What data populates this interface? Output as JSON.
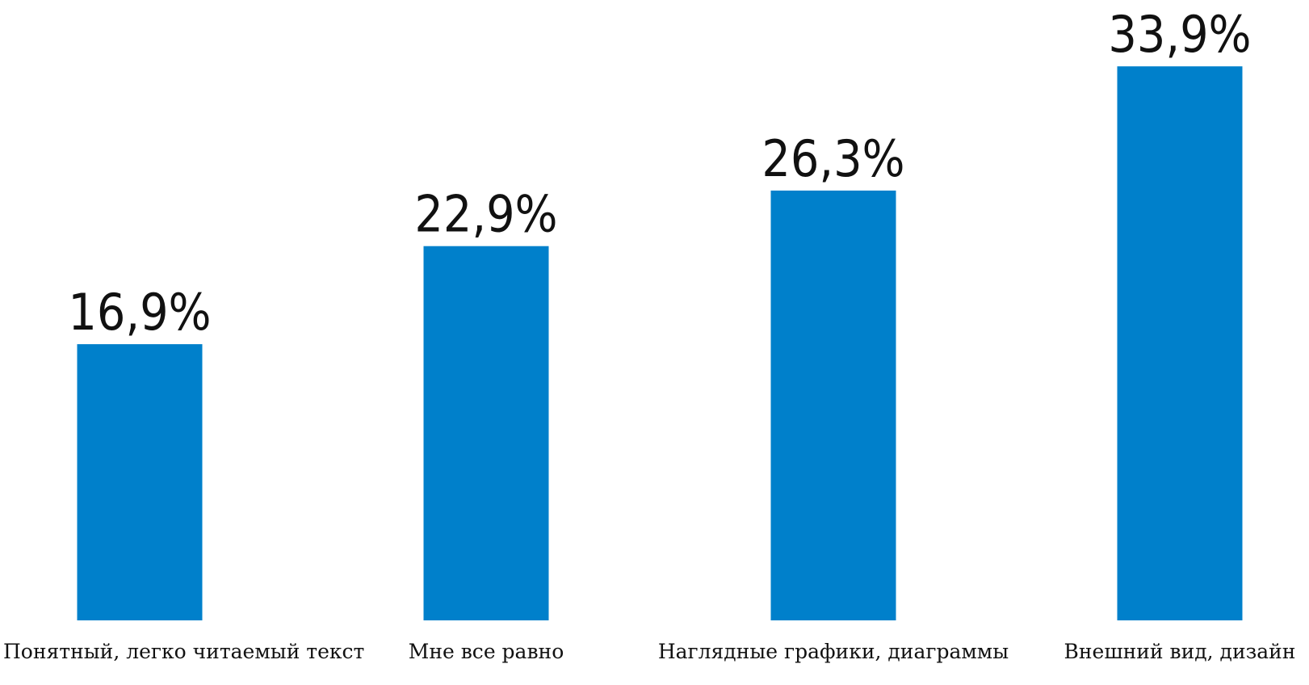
{
  "chart_data": {
    "type": "bar",
    "categories": [
      "Понятный, легко читаемый текст",
      "Мне все равно",
      "Наглядные графики, диаграммы",
      "Внешний вид, дизайн"
    ],
    "values": [
      16.9,
      22.9,
      26.3,
      33.9
    ],
    "value_labels": [
      "16,9%",
      "22,9%",
      "26,3%",
      "33,9%"
    ],
    "title": "",
    "xlabel": "",
    "ylabel": "",
    "ylim": [
      0,
      34.5
    ],
    "grid": false,
    "legend": "none",
    "bar_color": "#0080cb"
  }
}
